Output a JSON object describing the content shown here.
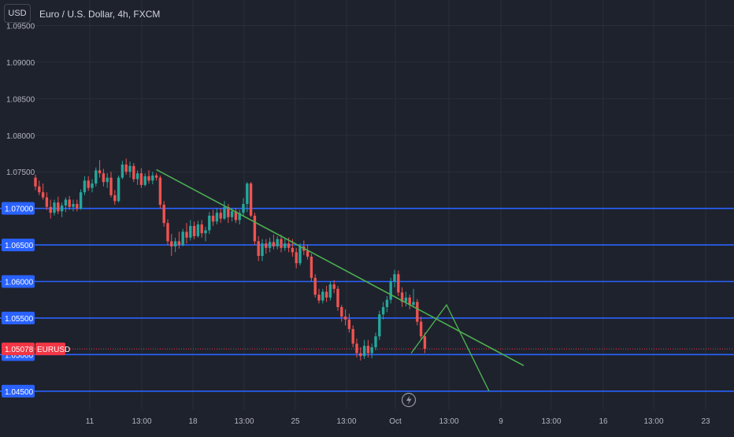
{
  "header": {
    "currency_button": "USD",
    "symbol_title": "Euro / U.S. Dollar, 4h, FXCM"
  },
  "colors": {
    "background": "#1e222d",
    "grid": "#2a2e39",
    "text": "#b2b5be",
    "up": "#26a69a",
    "down": "#ef5350",
    "level_line": "#2962ff",
    "trend_line": "#4caf50",
    "price_badge": "#f23645"
  },
  "chart_data": {
    "type": "candlestick",
    "symbol": "EURUSD",
    "timeframe": "4h",
    "ylim": [
      1.0425,
      1.0985
    ],
    "y_ticks": [
      "1.09500",
      "1.09000",
      "1.08500",
      "1.08000",
      "1.07500"
    ],
    "x_ticks": [
      "11",
      "13:00",
      "18",
      "13:00",
      "25",
      "13:00",
      "Oct",
      "13:00",
      "9",
      "13:00",
      "16",
      "13:00",
      "23"
    ],
    "bars_total_span": 138,
    "horizontal_levels": [
      {
        "label": "1.07000",
        "value": 1.07
      },
      {
        "label": "1.06500",
        "value": 1.065
      },
      {
        "label": "1.06000",
        "value": 1.06
      },
      {
        "label": "1.05500",
        "value": 1.055
      },
      {
        "label": "1.05000",
        "value": 1.05
      },
      {
        "label": "1.04500",
        "value": 1.045
      }
    ],
    "current_price": {
      "label": "1.05078",
      "value": 1.05078,
      "ticker": "EURUSD"
    },
    "trendline": [
      [
        1.0753,
        1.05765
      ]
    ],
    "projection": [
      1.0502,
      1.0568,
      1.045
    ],
    "candles": [
      [
        1.0742,
        1.0746,
        1.0725,
        1.073
      ],
      [
        1.073,
        1.0738,
        1.0718,
        1.0722
      ],
      [
        1.0722,
        1.0734,
        1.0712,
        1.0715
      ],
      [
        1.0715,
        1.0722,
        1.0698,
        1.0702
      ],
      [
        1.0702,
        1.0712,
        1.0686,
        1.0694
      ],
      [
        1.0694,
        1.0712,
        1.069,
        1.0708
      ],
      [
        1.0708,
        1.0716,
        1.0692,
        1.0696
      ],
      [
        1.0696,
        1.0708,
        1.0688,
        1.0704
      ],
      [
        1.0704,
        1.0715,
        1.0695,
        1.0712
      ],
      [
        1.0712,
        1.0717,
        1.0698,
        1.0702
      ],
      [
        1.0702,
        1.0712,
        1.0696,
        1.0706
      ],
      [
        1.0706,
        1.0712,
        1.0696,
        1.07
      ],
      [
        1.07,
        1.0726,
        1.0698,
        1.0722
      ],
      [
        1.0722,
        1.0744,
        1.0718,
        1.0738
      ],
      [
        1.0738,
        1.0744,
        1.0724,
        1.0728
      ],
      [
        1.0728,
        1.074,
        1.0722,
        1.0734
      ],
      [
        1.0734,
        1.0756,
        1.073,
        1.0752
      ],
      [
        1.0752,
        1.0766,
        1.0742,
        1.0748
      ],
      [
        1.0748,
        1.0754,
        1.073,
        1.0736
      ],
      [
        1.0736,
        1.0748,
        1.0728,
        1.0742
      ],
      [
        1.0742,
        1.075,
        1.0715,
        1.0718
      ],
      [
        1.0718,
        1.0725,
        1.0705,
        1.071
      ],
      [
        1.071,
        1.0745,
        1.0708,
        1.0742
      ],
      [
        1.0742,
        1.0765,
        1.074,
        1.076
      ],
      [
        1.076,
        1.0768,
        1.0746,
        1.075
      ],
      [
        1.075,
        1.0764,
        1.0742,
        1.0758
      ],
      [
        1.0758,
        1.0762,
        1.0736,
        1.074
      ],
      [
        1.074,
        1.0752,
        1.0732,
        1.0748
      ],
      [
        1.0748,
        1.0755,
        1.0728,
        1.0732
      ],
      [
        1.0732,
        1.0748,
        1.073,
        1.0744
      ],
      [
        1.0744,
        1.0752,
        1.0734,
        1.0738
      ],
      [
        1.0738,
        1.075,
        1.0733,
        1.0745
      ],
      [
        1.0745,
        1.0748,
        1.0738,
        1.0742
      ],
      [
        1.0742,
        1.0745,
        1.07,
        1.0705
      ],
      [
        1.0705,
        1.071,
        1.0675,
        1.068
      ],
      [
        1.068,
        1.0685,
        1.065,
        1.0655
      ],
      [
        1.0655,
        1.0665,
        1.0635,
        1.0648
      ],
      [
        1.0648,
        1.066,
        1.064,
        1.0655
      ],
      [
        1.0655,
        1.0668,
        1.0645,
        1.065
      ],
      [
        1.065,
        1.0672,
        1.0648,
        1.0668
      ],
      [
        1.0668,
        1.068,
        1.0652,
        1.066
      ],
      [
        1.066,
        1.0684,
        1.0656,
        1.0676
      ],
      [
        1.0676,
        1.0682,
        1.0658,
        1.0662
      ],
      [
        1.0662,
        1.0683,
        1.066,
        1.0678
      ],
      [
        1.0678,
        1.0684,
        1.066,
        1.0666
      ],
      [
        1.0666,
        1.0675,
        1.0655,
        1.067
      ],
      [
        1.067,
        1.0695,
        1.0665,
        1.069
      ],
      [
        1.069,
        1.0698,
        1.0676,
        1.0682
      ],
      [
        1.0682,
        1.07,
        1.0678,
        1.0694
      ],
      [
        1.0694,
        1.07,
        1.068,
        1.0686
      ],
      [
        1.0686,
        1.071,
        1.0684,
        1.0702
      ],
      [
        1.0702,
        1.0706,
        1.068,
        1.0688
      ],
      [
        1.0688,
        1.07,
        1.0682,
        1.0696
      ],
      [
        1.0696,
        1.07,
        1.068,
        1.0684
      ],
      [
        1.0684,
        1.0698,
        1.0678,
        1.0694
      ],
      [
        1.0694,
        1.0714,
        1.069,
        1.0706
      ],
      [
        1.0706,
        1.0736,
        1.0695,
        1.0734
      ],
      [
        1.0734,
        1.0736,
        1.0688,
        1.069
      ],
      [
        1.069,
        1.0694,
        1.065,
        1.0655
      ],
      [
        1.0655,
        1.0662,
        1.0628,
        1.0635
      ],
      [
        1.0635,
        1.0658,
        1.0628,
        1.0652
      ],
      [
        1.0652,
        1.0658,
        1.0638,
        1.0646
      ],
      [
        1.0646,
        1.066,
        1.064,
        1.0654
      ],
      [
        1.0654,
        1.0664,
        1.0644,
        1.0648
      ],
      [
        1.0648,
        1.0662,
        1.0644,
        1.0658
      ],
      [
        1.0658,
        1.0664,
        1.064,
        1.0646
      ],
      [
        1.0646,
        1.066,
        1.0642,
        1.0652
      ],
      [
        1.0652,
        1.066,
        1.064,
        1.0646
      ],
      [
        1.0646,
        1.0658,
        1.0634,
        1.064
      ],
      [
        1.064,
        1.0646,
        1.0618,
        1.0625
      ],
      [
        1.0625,
        1.0652,
        1.0622,
        1.0648
      ],
      [
        1.0648,
        1.0656,
        1.0636,
        1.0642
      ],
      [
        1.0642,
        1.065,
        1.063,
        1.0634
      ],
      [
        1.0634,
        1.0638,
        1.06,
        1.0605
      ],
      [
        1.0605,
        1.061,
        1.0578,
        1.0582
      ],
      [
        1.0582,
        1.059,
        1.057,
        1.0574
      ],
      [
        1.0574,
        1.059,
        1.057,
        1.0586
      ],
      [
        1.0586,
        1.0594,
        1.0572,
        1.0578
      ],
      [
        1.0578,
        1.06,
        1.0574,
        1.0596
      ],
      [
        1.0596,
        1.0602,
        1.0584,
        1.059
      ],
      [
        1.059,
        1.0594,
        1.056,
        1.0565
      ],
      [
        1.0565,
        1.0568,
        1.0545,
        1.0552
      ],
      [
        1.0552,
        1.0562,
        1.054,
        1.0548
      ],
      [
        1.0548,
        1.0556,
        1.053,
        1.0535
      ],
      [
        1.0535,
        1.054,
        1.051,
        1.0515
      ],
      [
        1.0515,
        1.0522,
        1.0496,
        1.0502
      ],
      [
        1.0502,
        1.051,
        1.0492,
        1.0498
      ],
      [
        1.0498,
        1.052,
        1.0494,
        1.0512
      ],
      [
        1.0512,
        1.052,
        1.0496,
        1.0502
      ],
      [
        1.0502,
        1.0515,
        1.0495,
        1.051
      ],
      [
        1.051,
        1.053,
        1.0506,
        1.0525
      ],
      [
        1.0525,
        1.056,
        1.052,
        1.0555
      ],
      [
        1.0555,
        1.0572,
        1.0548,
        1.0565
      ],
      [
        1.0565,
        1.058,
        1.0558,
        1.0575
      ],
      [
        1.0575,
        1.0605,
        1.057,
        1.06
      ],
      [
        1.06,
        1.0616,
        1.0592,
        1.061
      ],
      [
        1.061,
        1.0615,
        1.058,
        1.0585
      ],
      [
        1.0585,
        1.0592,
        1.0565,
        1.0572
      ],
      [
        1.0572,
        1.0586,
        1.0566,
        1.0578
      ],
      [
        1.0578,
        1.0582,
        1.0562,
        1.0568
      ],
      [
        1.0568,
        1.059,
        1.0564,
        1.0572
      ],
      [
        1.0572,
        1.0576,
        1.054,
        1.0545
      ],
      [
        1.0545,
        1.0552,
        1.052,
        1.0525
      ],
      [
        1.0525,
        1.053,
        1.0502,
        1.0508
      ]
    ]
  }
}
